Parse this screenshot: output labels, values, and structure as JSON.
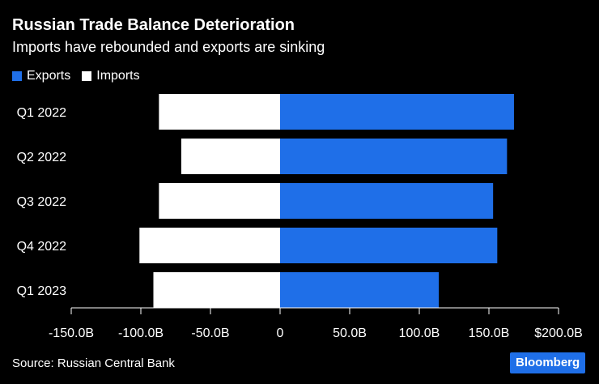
{
  "chart_data": {
    "type": "bar",
    "orientation": "horizontal",
    "title": "Russian Trade Balance Deterioration",
    "subtitle": "Imports have rebounded and exports are sinking",
    "categories": [
      "Q1 2022",
      "Q2 2022",
      "Q3 2022",
      "Q4 2022",
      "Q1 2023"
    ],
    "series": [
      {
        "name": "Exports",
        "color": "#1f6fe8",
        "values": [
          168,
          163,
          153,
          156,
          114
        ]
      },
      {
        "name": "Imports",
        "color": "#ffffff",
        "values": [
          -87,
          -71,
          -87,
          -101,
          -91
        ]
      }
    ],
    "xlim": [
      -150,
      200
    ],
    "x_ticks": [
      -150,
      -100,
      -50,
      0,
      50,
      100,
      150,
      200
    ],
    "x_tick_labels": [
      "-150.0B",
      "-100.0B",
      "-50.0B",
      "0",
      "50.0B",
      "100.0B",
      "150.0B",
      "$200.0B"
    ],
    "legend_position": "top-left",
    "grid": false
  },
  "footer": {
    "source": "Source: Russian Central Bank",
    "brand": "Bloomberg"
  }
}
